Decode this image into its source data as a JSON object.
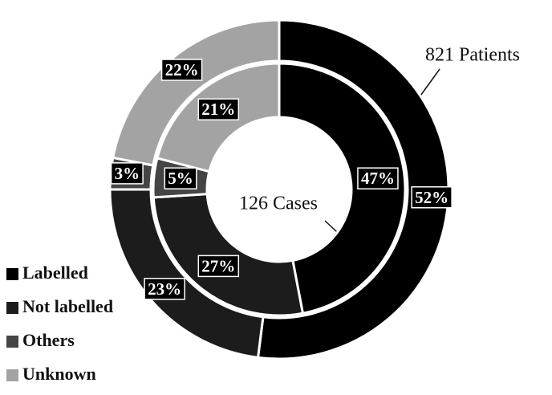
{
  "chart_data": {
    "type": "donut",
    "categories": [
      "Labelled",
      "Not labelled",
      "Others",
      "Unknown"
    ],
    "colors": [
      "#000000",
      "#1c1c1c",
      "#454545",
      "#a3a3a3"
    ],
    "series": [
      {
        "name": "821 Patients",
        "values": [
          52,
          23,
          3,
          22
        ],
        "value_labels": [
          "52%",
          "23%",
          "3%",
          "22%"
        ]
      },
      {
        "name": "126 Cases",
        "values": [
          47,
          27,
          5,
          21
        ],
        "value_labels": [
          "47%",
          "27%",
          "5%",
          "21%"
        ]
      }
    ]
  }
}
